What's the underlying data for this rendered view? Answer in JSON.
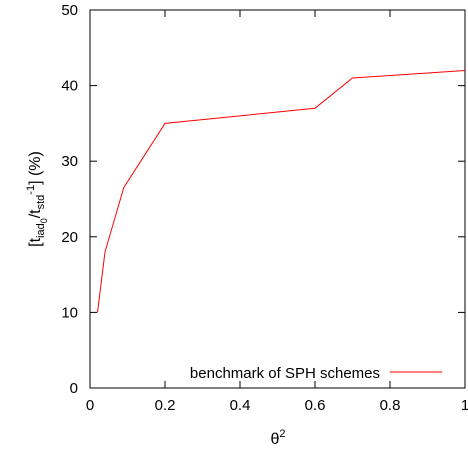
{
  "chart_data": {
    "type": "line",
    "xlabel": {
      "base": "θ",
      "sup": "2"
    },
    "ylabel": {
      "open": "[t",
      "sub1": "iad",
      "sub2": "0",
      "mid": "/t",
      "sub3": "std",
      "sup": "-1",
      "close": "] (%)"
    },
    "xlim": [
      0,
      1
    ],
    "ylim": [
      0,
      50
    ],
    "xticks": [
      "0",
      "0.2",
      "0.4",
      "0.6",
      "0.8",
      "1"
    ],
    "yticks": [
      "0",
      "10",
      "20",
      "30",
      "40",
      "50"
    ],
    "grid": false,
    "legend_position": "bottom-right",
    "series": [
      {
        "name": "benchmark of SPH schemes",
        "color": "#ff0000",
        "x": [
          0.02,
          0.04,
          0.09,
          0.2,
          0.6,
          0.7,
          1.0
        ],
        "y": [
          10,
          18,
          26.5,
          35,
          37,
          41,
          42
        ]
      }
    ]
  }
}
